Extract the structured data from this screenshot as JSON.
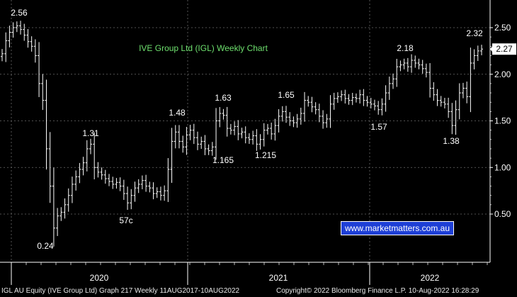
{
  "chart_data": {
    "type": "ohlc",
    "title": "IVE Group Ltd (IGL) Weekly Chart",
    "colors": {
      "background": "#000000",
      "bars": "#ffffff",
      "title": "#6ee06e",
      "grid": "#6b6b6b",
      "last_price_box": "#ffffff",
      "watermark_box": "#1e3fd6"
    },
    "grid": true,
    "y_axis_position": "right",
    "ylim": [
      0.15,
      2.7
    ],
    "y_ticks": [
      "2.50",
      "2.00",
      "1.50",
      "1.00",
      "0.50"
    ],
    "y_tick_values": [
      2.5,
      2.0,
      1.5,
      1.0,
      0.5
    ],
    "x_labels": [
      "2020",
      "2021",
      "2022"
    ],
    "last_price": "2.27",
    "annotations": [
      {
        "text": "2.56",
        "week": 4
      },
      {
        "text": "0.24",
        "week": 14
      },
      {
        "text": "1.31",
        "week": 24
      },
      {
        "text": "57c",
        "week": 34
      },
      {
        "text": "1.48",
        "week": 47
      },
      {
        "text": "1.165",
        "week": 57
      },
      {
        "text": "1.63",
        "week": 60
      },
      {
        "text": "1.215",
        "week": 70
      },
      {
        "text": "1.65",
        "week": 77
      },
      {
        "text": "1.57",
        "week": 102
      },
      {
        "text": "2.18",
        "week": 109
      },
      {
        "text": "1.38",
        "week": 122
      },
      {
        "text": "2.32",
        "week": 128
      }
    ],
    "weekly_close": [
      2.22,
      2.36,
      2.45,
      2.5,
      2.52,
      2.48,
      2.42,
      2.35,
      2.3,
      2.2,
      1.9,
      1.72,
      1.2,
      0.8,
      0.35,
      0.48,
      0.52,
      0.6,
      0.7,
      0.82,
      0.9,
      0.98,
      1.05,
      1.2,
      1.25,
      1.0,
      0.95,
      0.92,
      0.88,
      0.85,
      0.82,
      0.84,
      0.8,
      0.72,
      0.62,
      0.7,
      0.78,
      0.82,
      0.86,
      0.8,
      0.78,
      0.72,
      0.74,
      0.7,
      0.75,
      0.98,
      1.28,
      1.38,
      1.28,
      1.22,
      1.35,
      1.4,
      1.32,
      1.25,
      1.28,
      1.2,
      1.18,
      1.22,
      1.5,
      1.58,
      1.56,
      1.42,
      1.4,
      1.44,
      1.36,
      1.38,
      1.32,
      1.3,
      1.34,
      1.25,
      1.3,
      1.4,
      1.42,
      1.36,
      1.45,
      1.55,
      1.6,
      1.54,
      1.5,
      1.48,
      1.52,
      1.58,
      1.72,
      1.7,
      1.65,
      1.62,
      1.55,
      1.48,
      1.52,
      1.68,
      1.74,
      1.76,
      1.78,
      1.74,
      1.72,
      1.75,
      1.74,
      1.78,
      1.72,
      1.7,
      1.68,
      1.66,
      1.62,
      1.68,
      1.8,
      1.9,
      1.95,
      2.08,
      2.1,
      2.12,
      2.08,
      2.15,
      2.12,
      2.1,
      2.06,
      2.02,
      1.85,
      1.78,
      1.72,
      1.7,
      1.68,
      1.6,
      1.45,
      1.62,
      1.8,
      1.85,
      1.76,
      2.12,
      2.2,
      2.25,
      2.27
    ]
  },
  "watermark": "www.marketmatters.com.au",
  "footer": {
    "left": "IGL AU Equity (IVE Group Ltd) Graph 217  Weekly 11AUG2017-10AUG2022",
    "right": "Copyright© 2022 Bloomberg Finance L.P.   10-Aug-2022 16:28:29"
  }
}
